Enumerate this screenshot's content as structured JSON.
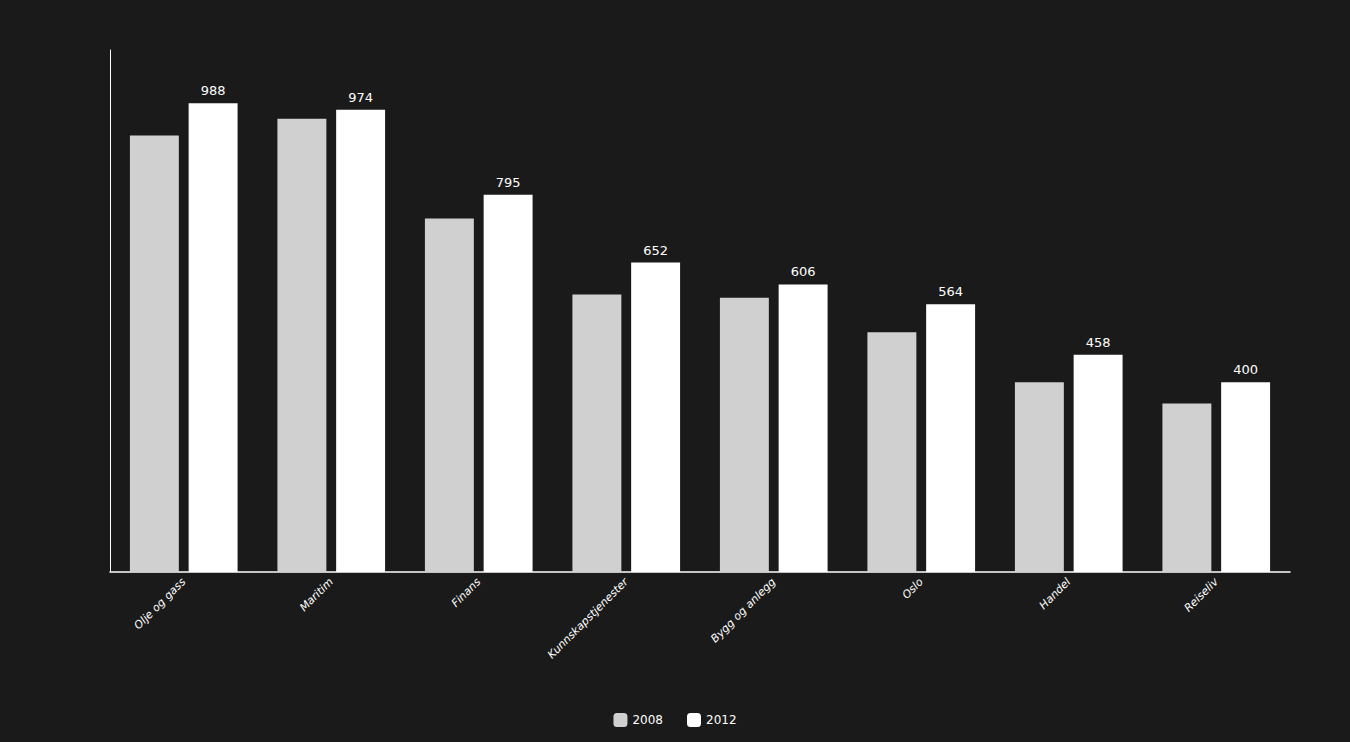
{
  "chart_data": {
    "type": "bar",
    "categories": [
      "Olje og gass",
      "Maritim",
      "Finans",
      "Kunnskapstjenester",
      "Bygg og anlegg",
      "Oslo",
      "Handel",
      "Reiseliv"
    ],
    "series": [
      {
        "name": "2008",
        "color": "#d0d0d0",
        "values": [
          920,
          955,
          745,
          585,
          578,
          505,
          400,
          355
        ]
      },
      {
        "name": "2012",
        "color": "#ffffff",
        "values": [
          988,
          974,
          795,
          652,
          606,
          564,
          458,
          400
        ],
        "data_labels": true
      }
    ],
    "ylim": [
      0,
      1100
    ],
    "tick_labels": "x",
    "grid": false,
    "legend": "bottom"
  }
}
